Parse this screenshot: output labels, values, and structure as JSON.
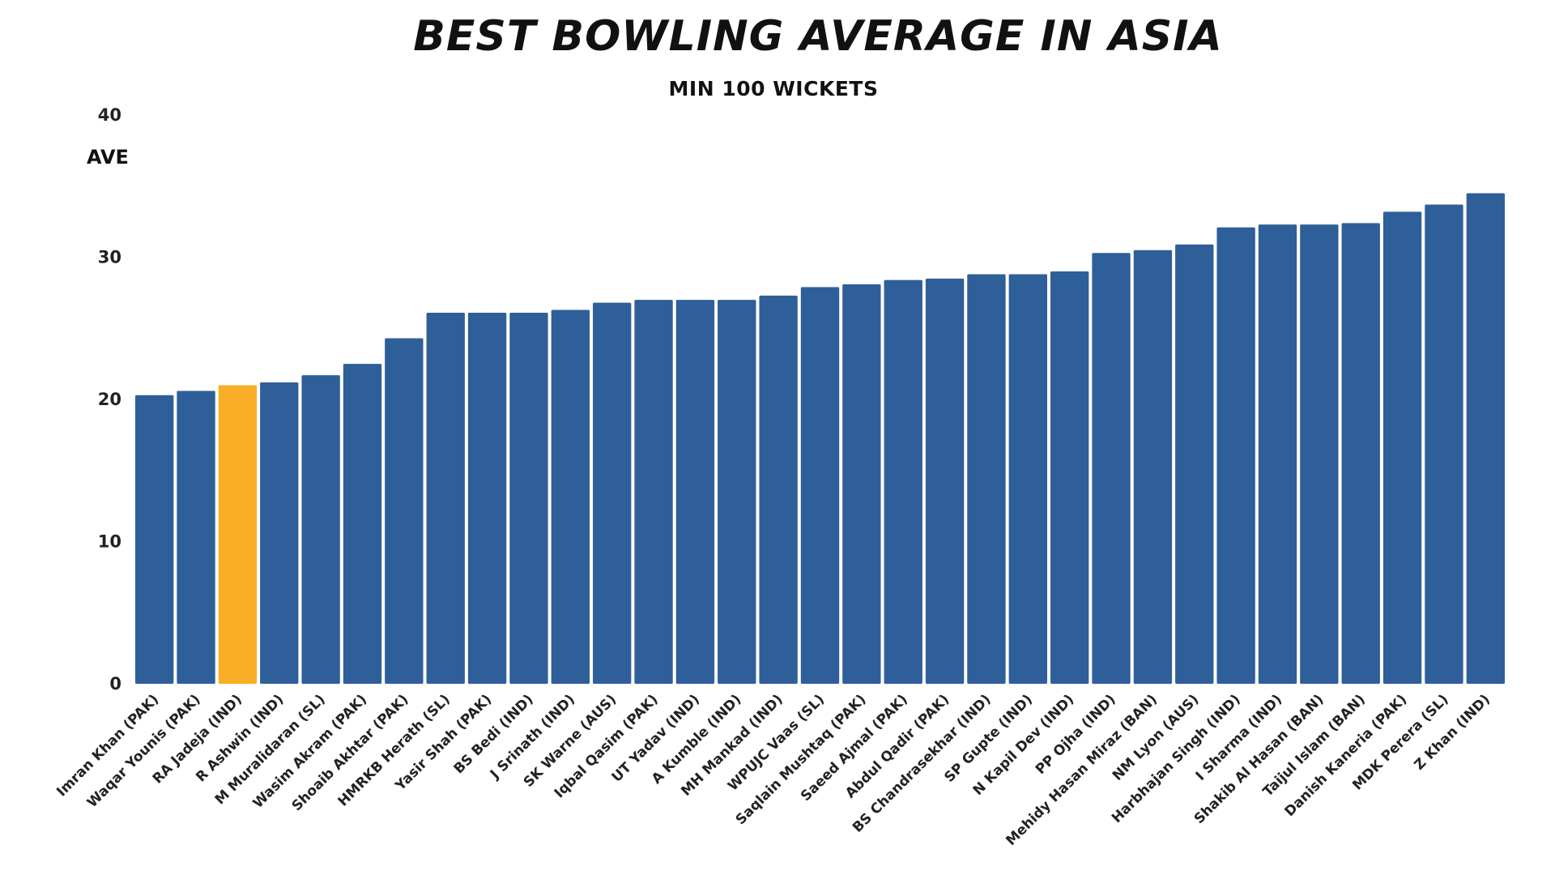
{
  "chart_data": {
    "type": "bar",
    "title": "BEST BOWLING AVERAGE IN ASIA",
    "subtitle": "MIN 100 WICKETS",
    "xlabel": "",
    "ylabel": "AVE",
    "ylim": [
      0,
      40
    ],
    "yticks": [
      0,
      10,
      20,
      30,
      40
    ],
    "grid": false,
    "legend": "none",
    "colors": {
      "default": "#2F5F98",
      "highlight": "#F9AE28"
    },
    "highlight_category": "RA Jadeja (IND)",
    "categories": [
      "Imran Khan (PAK)",
      "Waqar Younis (PAK)",
      "RA Jadeja (IND)",
      "R Ashwin (IND)",
      "M Muralidaran (SL)",
      "Wasim Akram (PAK)",
      "Shoaib Akhtar (PAK)",
      "HMRKB Herath (SL)",
      "Yasir Shah (PAK)",
      "BS Bedi (IND)",
      "J Srinath (IND)",
      "SK Warne (AUS)",
      "Iqbal Qasim (PAK)",
      "UT Yadav (IND)",
      "A Kumble (IND)",
      "MH Mankad (IND)",
      "WPUJC Vaas (SL)",
      "Saqlain Mushtaq (PAK)",
      "Saeed Ajmal (PAK)",
      "Abdul Qadir (PAK)",
      "BS Chandrasekhar (IND)",
      "SP Gupte (IND)",
      "N Kapil Dev (IND)",
      "PP Ojha (IND)",
      "Mehidy Hasan Miraz (BAN)",
      "NM Lyon (AUS)",
      "Harbhajan Singh (IND)",
      "I Sharma (IND)",
      "Shakib Al Hasan (BAN)",
      "Taijul Islam (BAN)",
      "Danish Kaneria (PAK)",
      "MDK Perera (SL)",
      "Z Khan (IND)"
    ],
    "values": [
      20.3,
      20.6,
      21.0,
      21.2,
      21.7,
      22.5,
      24.3,
      26.1,
      26.1,
      26.1,
      26.3,
      26.8,
      27.0,
      27.0,
      27.0,
      27.3,
      27.9,
      28.1,
      28.4,
      28.5,
      28.8,
      28.8,
      29.0,
      30.3,
      30.5,
      30.9,
      32.1,
      32.3,
      32.3,
      32.4,
      33.2,
      33.7,
      34.5
    ]
  }
}
